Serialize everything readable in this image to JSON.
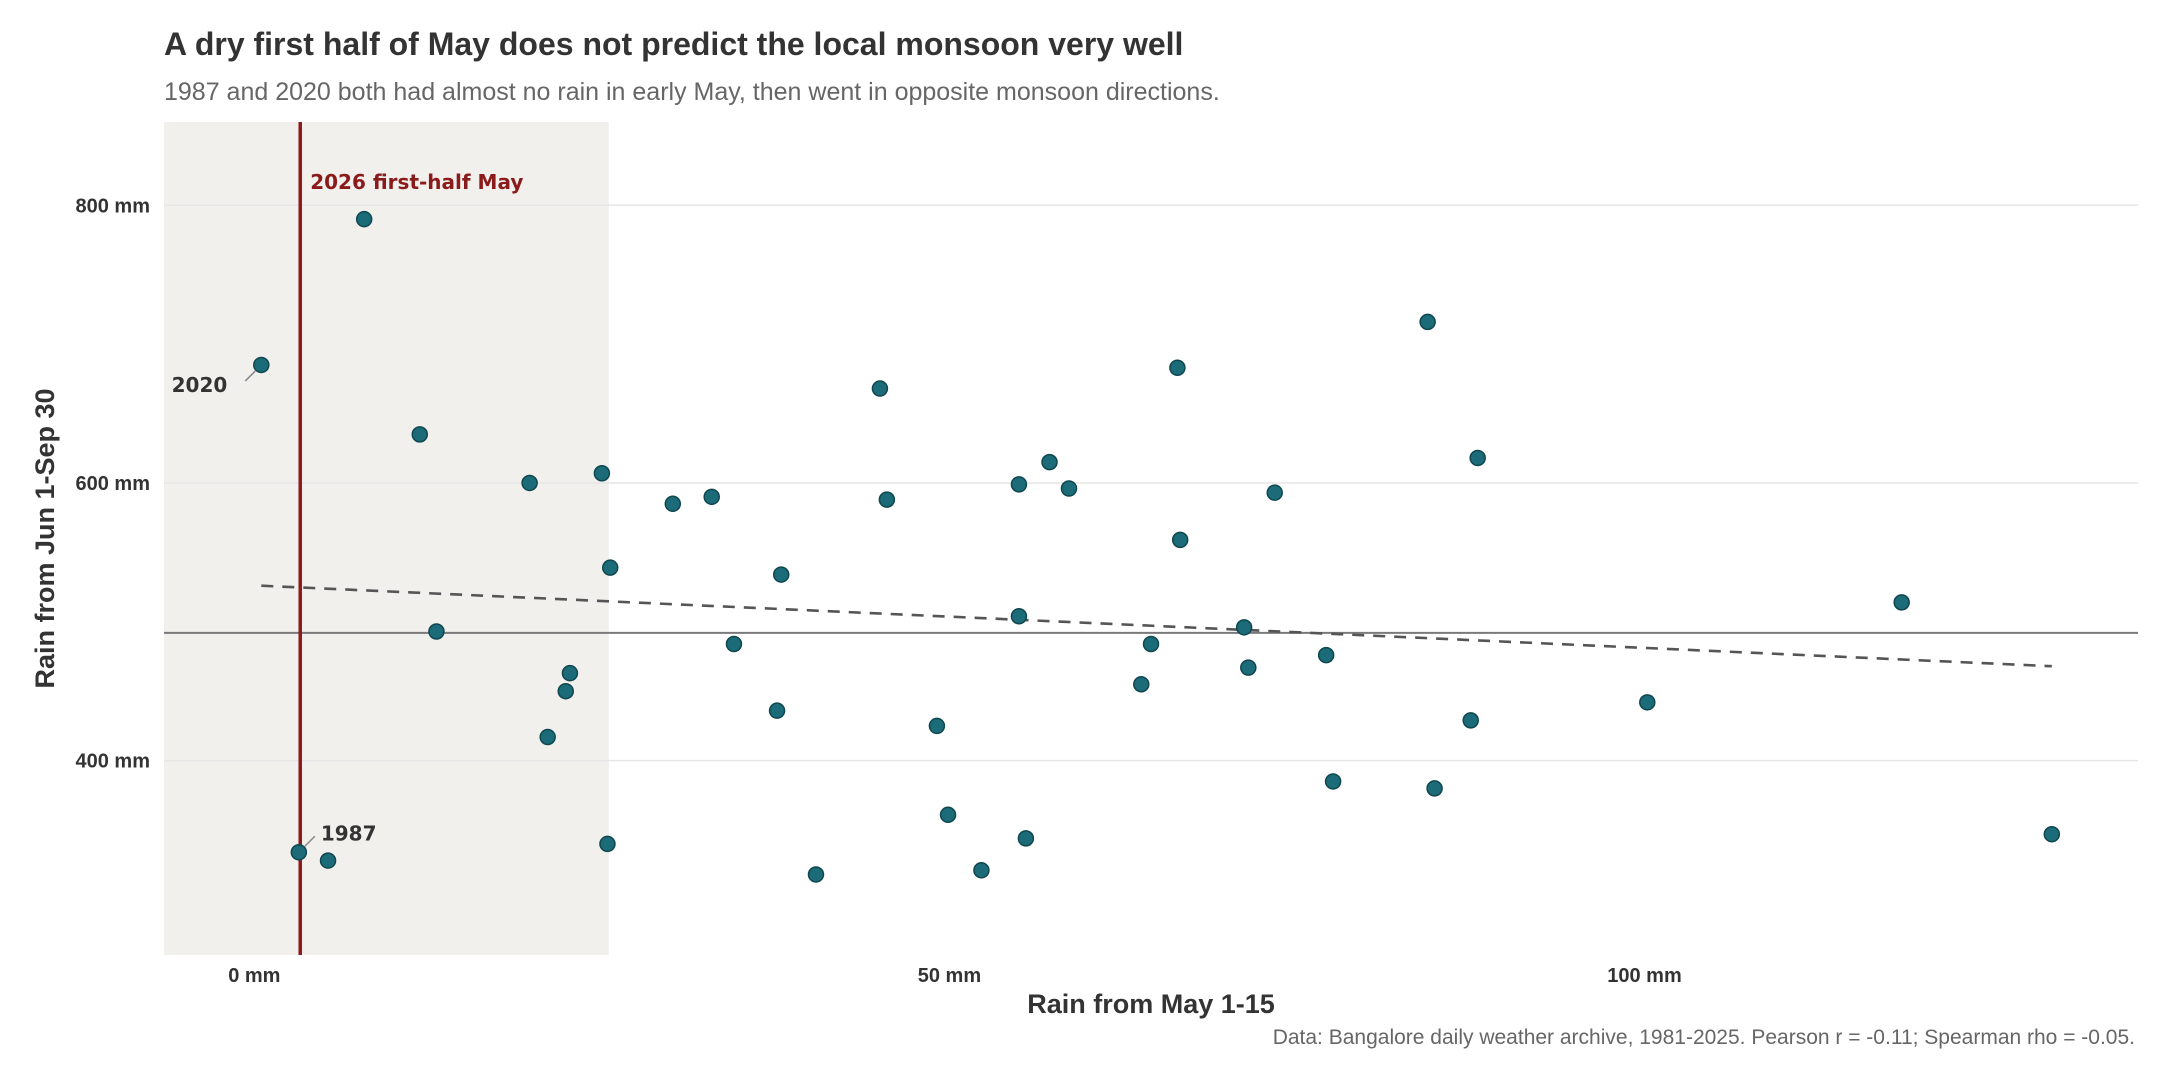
{
  "chart_data": {
    "type": "scatter",
    "title": "A dry first half of May does not predict the local monsoon very well",
    "subtitle": "1987 and 2020 both had almost no rain in early May, then went in opposite monsoon directions.",
    "caption": "Data: Bangalore daily weather archive, 1981-2025. Pearson r = -0.11; Spearman rho = -0.05.",
    "xlabel": "Rain from May 1-15",
    "ylabel": "Rain from Jun 1-Sep 30",
    "xlim": [
      -6.5,
      135.5
    ],
    "ylim": [
      260,
      860
    ],
    "x_ticks": [
      {
        "value": 0,
        "label": "0 mm"
      },
      {
        "value": 50,
        "label": "50 mm"
      },
      {
        "value": 100,
        "label": "100 mm"
      }
    ],
    "y_ticks": [
      {
        "value": 400,
        "label": "400 mm"
      },
      {
        "value": 600,
        "label": "600 mm"
      },
      {
        "value": 800,
        "label": "800 mm"
      }
    ],
    "grid": "horizontal",
    "shaded_band": {
      "x_from": -6.5,
      "x_to": 25.5
    },
    "reference_line": {
      "x": 3.3,
      "label": "2026 first-half May",
      "color": "#8b1a1a"
    },
    "mean_line": {
      "y": 492
    },
    "trend_line": {
      "x": [
        0.5,
        129.3
      ],
      "y": [
        526,
        468
      ]
    },
    "point_color": "#1b6b78",
    "points": [
      {
        "x": 0.5,
        "y": 685,
        "label": "2020"
      },
      {
        "x": 3.2,
        "y": 334,
        "label": "1987"
      },
      {
        "x": 5.3,
        "y": 328
      },
      {
        "x": 7.9,
        "y": 790
      },
      {
        "x": 11.9,
        "y": 635
      },
      {
        "x": 13.1,
        "y": 493
      },
      {
        "x": 19.8,
        "y": 600
      },
      {
        "x": 21.1,
        "y": 417
      },
      {
        "x": 22.4,
        "y": 450
      },
      {
        "x": 22.7,
        "y": 463
      },
      {
        "x": 25.0,
        "y": 607
      },
      {
        "x": 25.4,
        "y": 340
      },
      {
        "x": 25.6,
        "y": 539
      },
      {
        "x": 30.1,
        "y": 585
      },
      {
        "x": 32.9,
        "y": 590
      },
      {
        "x": 34.5,
        "y": 484
      },
      {
        "x": 37.6,
        "y": 436
      },
      {
        "x": 37.9,
        "y": 534
      },
      {
        "x": 40.4,
        "y": 318
      },
      {
        "x": 45.0,
        "y": 668
      },
      {
        "x": 45.5,
        "y": 588
      },
      {
        "x": 49.1,
        "y": 425
      },
      {
        "x": 49.9,
        "y": 361
      },
      {
        "x": 52.3,
        "y": 321
      },
      {
        "x": 55.0,
        "y": 599
      },
      {
        "x": 55.0,
        "y": 504
      },
      {
        "x": 55.5,
        "y": 344
      },
      {
        "x": 57.2,
        "y": 615
      },
      {
        "x": 58.6,
        "y": 596
      },
      {
        "x": 63.8,
        "y": 455
      },
      {
        "x": 64.5,
        "y": 484
      },
      {
        "x": 66.4,
        "y": 683
      },
      {
        "x": 66.6,
        "y": 559
      },
      {
        "x": 71.2,
        "y": 496
      },
      {
        "x": 71.5,
        "y": 467
      },
      {
        "x": 73.4,
        "y": 593
      },
      {
        "x": 77.1,
        "y": 476
      },
      {
        "x": 77.6,
        "y": 385
      },
      {
        "x": 84.4,
        "y": 716
      },
      {
        "x": 84.9,
        "y": 380
      },
      {
        "x": 87.5,
        "y": 429
      },
      {
        "x": 88.0,
        "y": 618
      },
      {
        "x": 100.2,
        "y": 442
      },
      {
        "x": 118.5,
        "y": 514
      },
      {
        "x": 129.3,
        "y": 347
      }
    ]
  }
}
